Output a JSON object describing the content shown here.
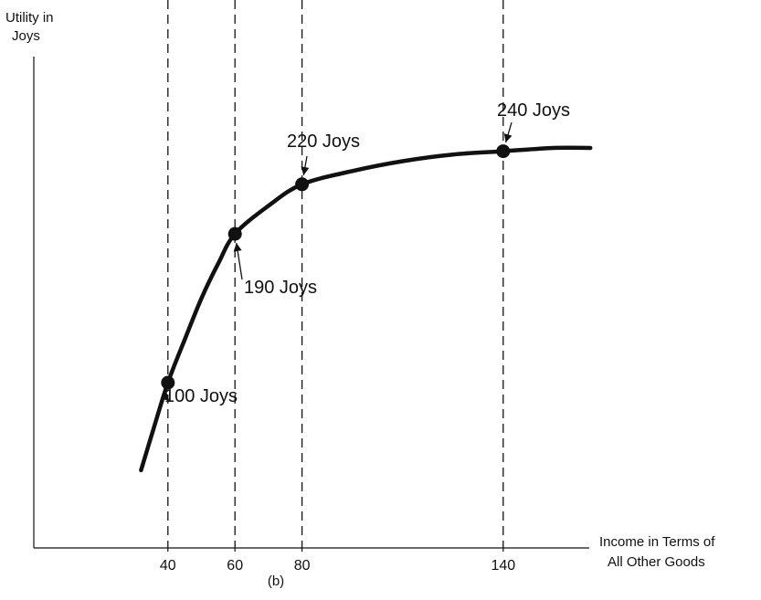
{
  "chart_data": {
    "type": "line",
    "ylabel": [
      "Utility in",
      "Joys"
    ],
    "xlabel": [
      "Income in Terms of",
      "All Other Goods"
    ],
    "panel_label": "(b)",
    "x_ticks": [
      {
        "value": 40,
        "label": "40"
      },
      {
        "value": 60,
        "label": "60"
      },
      {
        "value": 80,
        "label": "80"
      },
      {
        "value": 140,
        "label": "140"
      }
    ],
    "xlim": [
      0,
      200
    ],
    "ylim": [
      0,
      280
    ],
    "grid": false,
    "series": [
      {
        "curve": [
          {
            "x": 32,
            "y": 47
          },
          {
            "x": 36,
            "y": 74
          },
          {
            "x": 40,
            "y": 100
          },
          {
            "x": 45,
            "y": 126
          },
          {
            "x": 50,
            "y": 151
          },
          {
            "x": 55,
            "y": 172
          },
          {
            "x": 60,
            "y": 190
          },
          {
            "x": 70,
            "y": 207
          },
          {
            "x": 80,
            "y": 220
          },
          {
            "x": 95,
            "y": 228
          },
          {
            "x": 110,
            "y": 234
          },
          {
            "x": 125,
            "y": 238
          },
          {
            "x": 140,
            "y": 240
          },
          {
            "x": 155,
            "y": 242
          },
          {
            "x": 166,
            "y": 242
          }
        ],
        "points": [
          {
            "x": 40,
            "y": 100,
            "label": "100 Joys"
          },
          {
            "x": 60,
            "y": 190,
            "label": "190 Joys"
          },
          {
            "x": 80,
            "y": 220,
            "label": "220 Joys"
          },
          {
            "x": 140,
            "y": 240,
            "label": "240 Joys"
          }
        ]
      }
    ]
  }
}
